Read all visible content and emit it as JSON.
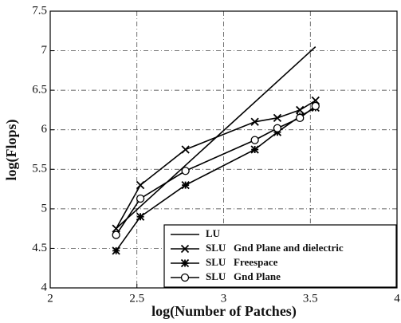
{
  "chart_data": {
    "type": "line",
    "xlabel": "log(Number of Patches)",
    "ylabel": "log(Flops)",
    "xlim": [
      2,
      4
    ],
    "xticks": [
      2,
      2.5,
      3,
      3.5,
      4
    ],
    "ylim": [
      4,
      7.5
    ],
    "yticks": [
      4,
      4.5,
      5,
      5.5,
      6,
      6.5,
      7,
      7.5
    ],
    "grid": true,
    "legend": "lower right",
    "series": [
      {
        "name": "LU",
        "color": "#000000",
        "marker": "none",
        "x": [
          2.38,
          3.53
        ],
        "values": [
          4.75,
          7.05
        ]
      },
      {
        "name": "SLU   Gnd Plane and dielectric",
        "color": "#000000",
        "marker": "x",
        "x": [
          2.38,
          2.52,
          2.78,
          3.18,
          3.31,
          3.44,
          3.53
        ],
        "values": [
          4.75,
          5.3,
          5.75,
          6.1,
          6.15,
          6.25,
          6.37
        ]
      },
      {
        "name": "SLU   Freespace",
        "color": "#000000",
        "marker": "star",
        "x": [
          2.38,
          2.52,
          2.78,
          3.18,
          3.31,
          3.44,
          3.53
        ],
        "values": [
          4.47,
          4.9,
          5.3,
          5.75,
          5.97,
          6.17,
          6.28
        ]
      },
      {
        "name": "SLU   Gnd Plane",
        "color": "#000000",
        "marker": "circle",
        "x": [
          2.38,
          2.52,
          2.78,
          3.18,
          3.31,
          3.44,
          3.53
        ],
        "values": [
          4.67,
          5.13,
          5.48,
          5.87,
          6.02,
          6.15,
          6.3
        ]
      }
    ]
  }
}
